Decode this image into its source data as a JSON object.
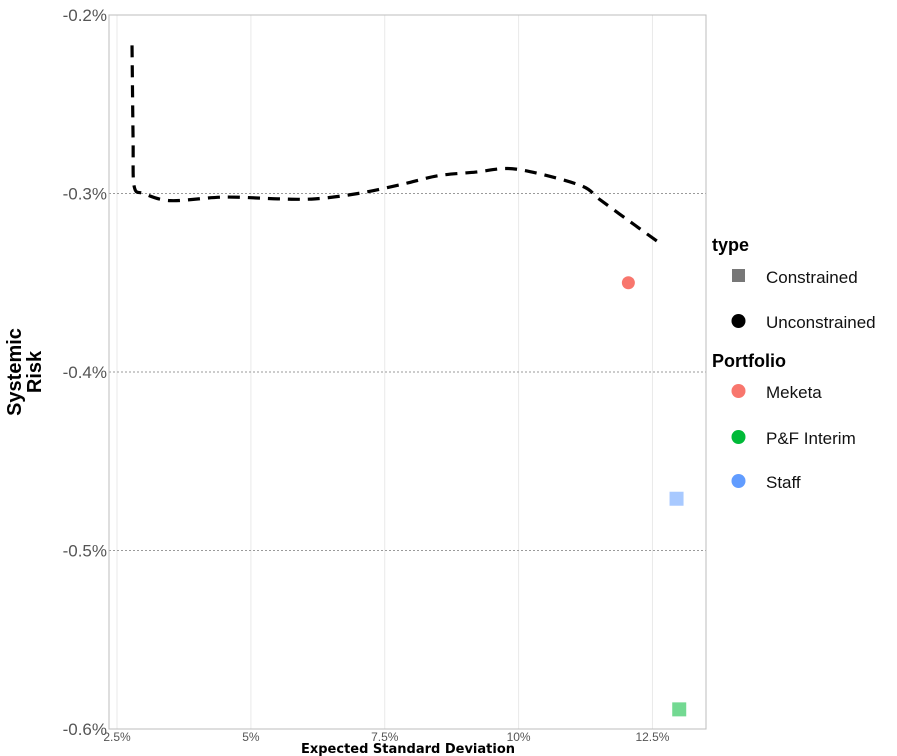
{
  "chart_data": {
    "type": "scatter",
    "xlabel": "Expected Standard Deviation",
    "ylabel": [
      "Systemic",
      "Risk"
    ],
    "xlim": [
      2.35,
      13.5
    ],
    "ylim": [
      -0.6,
      -0.2
    ],
    "xticks": [
      2.5,
      5,
      7.5,
      10,
      12.5
    ],
    "xtick_labels": [
      "2.5%",
      "5%",
      "7.5%",
      "10%",
      "12.5%"
    ],
    "yticks": [
      -0.2,
      -0.3,
      -0.4,
      -0.5,
      -0.6
    ],
    "ytick_labels": [
      "-0.2%",
      "-0.3%",
      "-0.4%",
      "-0.5%",
      "-0.6%"
    ],
    "grid": true,
    "frontier": {
      "style": "dashed",
      "color": "#000000",
      "x": [
        2.78,
        2.8,
        2.82,
        3.0,
        3.5,
        4.5,
        5.5,
        6.2,
        7.0,
        7.8,
        8.5,
        9.2,
        9.8,
        10.4,
        11.2,
        11.5,
        12.0,
        12.6
      ],
      "y": [
        -0.217,
        -0.27,
        -0.296,
        -0.3,
        -0.304,
        -0.302,
        -0.303,
        -0.303,
        -0.3,
        -0.295,
        -0.29,
        -0.288,
        -0.286,
        -0.289,
        -0.296,
        -0.303,
        -0.314,
        -0.327
      ]
    },
    "points": [
      {
        "portfolio": "Meketa",
        "type": "Unconstrained",
        "x": 12.05,
        "y": -0.35,
        "color": "#F8766D"
      },
      {
        "portfolio": "Staff",
        "type": "Constrained",
        "x": 12.95,
        "y": -0.471,
        "color": "#619CFF"
      },
      {
        "portfolio": "P&F Interim",
        "type": "Constrained",
        "x": 13.0,
        "y": -0.589,
        "color": "#00BA38"
      }
    ],
    "legend": {
      "placement": "right",
      "type": {
        "title": "type",
        "items": [
          {
            "label": "Constrained",
            "shape": "square",
            "color": "#777777"
          },
          {
            "label": "Unconstrained",
            "shape": "circle",
            "color": "#000000"
          }
        ]
      },
      "portfolio": {
        "title": "Portfolio",
        "items": [
          {
            "label": "Meketa",
            "color": "#F8766D"
          },
          {
            "label": "P&F Interim",
            "color": "#00BA38"
          },
          {
            "label": "Staff",
            "color": "#619CFF"
          }
        ]
      }
    }
  }
}
